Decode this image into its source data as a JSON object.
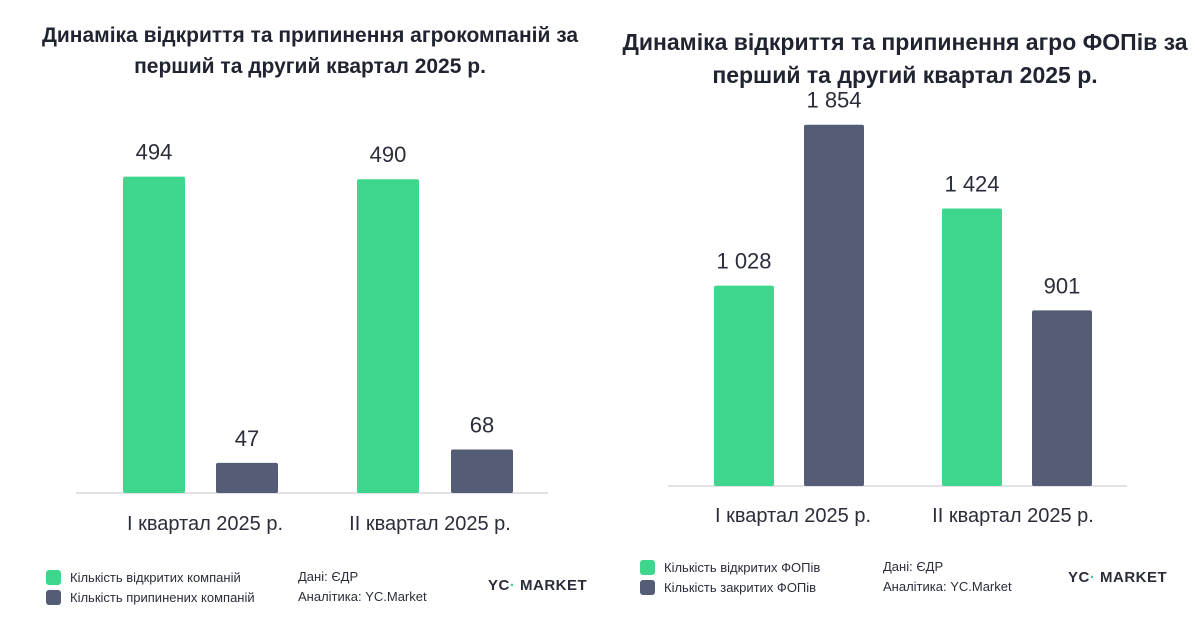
{
  "chart_data": [
    {
      "type": "bar",
      "title": "Динаміка відкриття та припинення агрокомпаній за перший та другий квартал 2025 р.",
      "categories": [
        "І квартал 2025 р.",
        "ІІ квартал 2025 р."
      ],
      "series": [
        {
          "name": "Кількість відкритих компаній",
          "values": [
            494,
            490
          ],
          "labels": [
            "494",
            "490"
          ],
          "color": "#3dd68c"
        },
        {
          "name": "Кількість припинених компаній",
          "values": [
            47,
            68
          ],
          "labels": [
            "47",
            "68"
          ],
          "color": "#555c75"
        }
      ],
      "ylim": [
        0,
        520
      ],
      "grid": false,
      "legend_position": "bottom-left",
      "source": "Дані: ЄДР",
      "analytics": "Аналітика: YC.Market",
      "logo": {
        "main": "YC",
        "accent": "·",
        "rest": " MARKET"
      }
    },
    {
      "type": "bar",
      "title": "Динаміка відкриття та припинення агро ФОПів за перший та другий квартал 2025 р.",
      "categories": [
        "І квартал 2025 р.",
        "ІІ квартал 2025 р."
      ],
      "series": [
        {
          "name": "Кількість відкритих ФОПів",
          "values": [
            1028,
            1424
          ],
          "labels": [
            "1 028",
            "1 424"
          ],
          "color": "#3dd68c"
        },
        {
          "name": "Кількість закритих ФОПів",
          "values": [
            1854,
            901
          ],
          "labels": [
            "1 854",
            "901"
          ],
          "color": "#555c75"
        }
      ],
      "ylim": [
        0,
        1950
      ],
      "grid": false,
      "legend_position": "bottom-left",
      "source": "Дані: ЄДР",
      "analytics": "Аналітика: YC.Market",
      "logo": {
        "main": "YC",
        "accent": "·",
        "rest": " MARKET"
      }
    }
  ]
}
